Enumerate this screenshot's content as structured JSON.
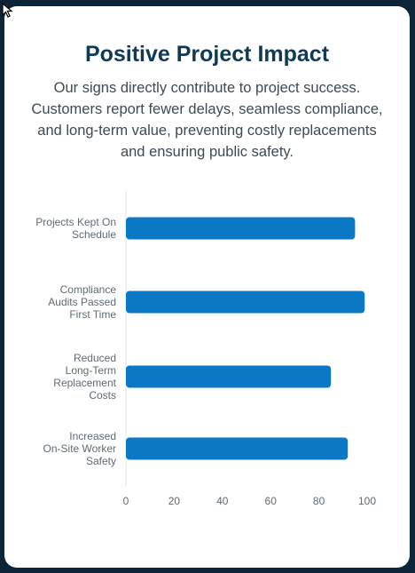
{
  "header": {
    "title": "Positive Project Impact",
    "subtitle": "Our signs directly contribute to project success. Customers report fewer delays, seamless compliance, and long-term value, preventing costly replacements and ensuring public safety."
  },
  "colors": {
    "background": "#0b2537",
    "card": "#ffffff",
    "title": "#0f3a56",
    "bar": "#0a78c4",
    "axis_text": "#5f6b73"
  },
  "chart_data": {
    "type": "bar",
    "orientation": "horizontal",
    "categories": [
      [
        "Projects Kept On",
        "Schedule"
      ],
      [
        "Compliance",
        "Audits Passed",
        "First Time"
      ],
      [
        "Reduced",
        "Long-Term",
        "Replacement",
        "Costs"
      ],
      [
        "Increased",
        "On-Site Worker",
        "Safety"
      ]
    ],
    "values": [
      95,
      99,
      85,
      92
    ],
    "xlim": [
      0,
      100
    ],
    "xticks": [
      0,
      20,
      40,
      60,
      80,
      100
    ],
    "grid": false,
    "legend": "none"
  }
}
